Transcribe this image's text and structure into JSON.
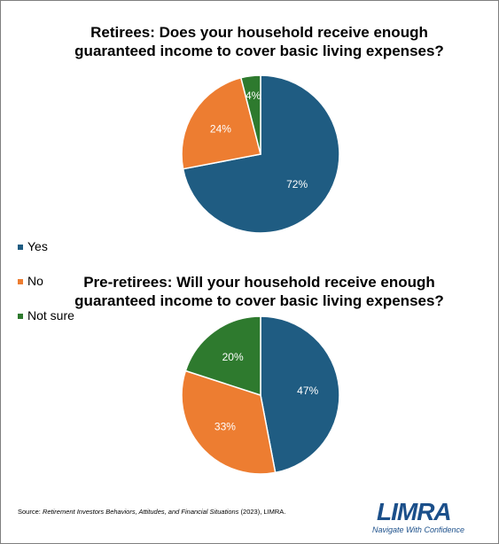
{
  "chart_data": [
    {
      "type": "pie",
      "title": "Retirees: Does your household receive enough guaranteed income to cover basic living expenses?",
      "title_lines": [
        "Retirees: Does your household receive enough",
        "guaranteed income to cover basic living expenses?"
      ],
      "categories": [
        "Yes",
        "No",
        "Not sure"
      ],
      "values": [
        72,
        24,
        4
      ],
      "value_labels": [
        "72%",
        "24%",
        "4%"
      ],
      "colors": [
        "#1f5c82",
        "#ed7d31",
        "#2e7a2e"
      ]
    },
    {
      "type": "pie",
      "title": "Pre-retirees: Will your household receive enough guaranteed income to cover basic living expenses?",
      "title_lines": [
        "Pre-retirees: Will your household receive enough",
        "guaranteed income to cover basic living expenses?"
      ],
      "categories": [
        "Yes",
        "No",
        "Not sure"
      ],
      "values": [
        47,
        33,
        20
      ],
      "value_labels": [
        "47%",
        "33%",
        "20%"
      ],
      "colors": [
        "#1f5c82",
        "#ed7d31",
        "#2e7a2e"
      ]
    }
  ],
  "legend": {
    "placement": "left",
    "items": [
      {
        "label": "Yes",
        "color": "#1f5c82"
      },
      {
        "label": "No",
        "color": "#ed7d31"
      },
      {
        "label": "Not sure",
        "color": "#2e7a2e"
      }
    ]
  },
  "source": {
    "prefix": "Source: ",
    "title": "Retirement Investors Behaviors, Attitudes, and Financial Situations",
    "suffix": " (2023), LIMRA."
  },
  "logo": {
    "word": "LIMRA",
    "tagline": "Navigate With Confidence"
  }
}
